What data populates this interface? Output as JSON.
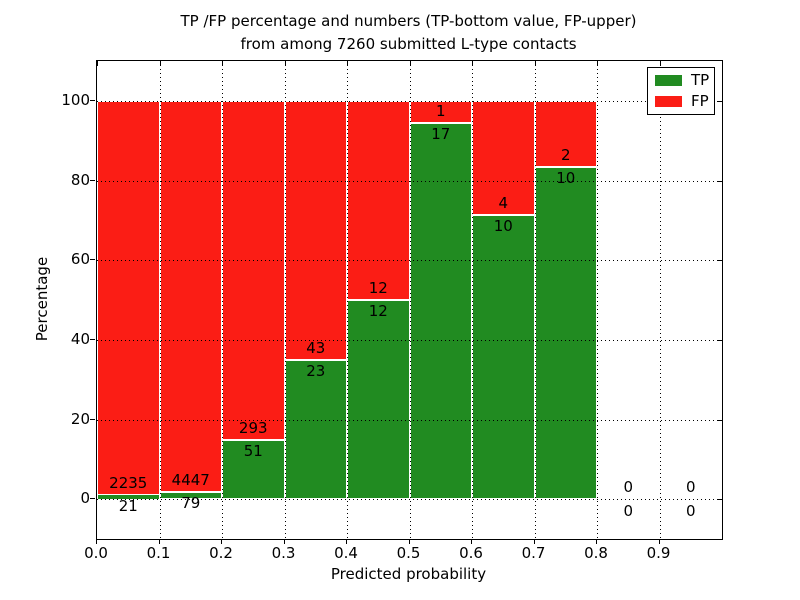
{
  "title": {
    "line1": "TP /FP percentage and numbers (TP-bottom value, FP-upper)",
    "line2": "from among 7260 submitted L-type contacts"
  },
  "axes": {
    "x_label": "Predicted probability",
    "y_label": "Percentage"
  },
  "legend": {
    "items": [
      {
        "label": "TP",
        "color": "#218b21"
      },
      {
        "label": "FP",
        "color": "#fb1d15"
      }
    ]
  },
  "chart_data": {
    "type": "bar",
    "stacked": true,
    "note": "Each bar is normalized to 100%; green TP fraction on bottom, red FP fraction on top. Count labels: TP count just below the TP/FP boundary, FP count just above it. Bins 0.8-0.9 and 0.9-1.0 have no bars, only 0/0 labels at the zero line.",
    "title": "TP /FP percentage and numbers (TP-bottom value, FP-upper) from among 7260 submitted L-type contacts",
    "xlabel": "Predicted probability",
    "ylabel": "Percentage",
    "xlim": [
      0.0,
      1.0
    ],
    "ylim": [
      -10,
      110
    ],
    "grid": "dotted black, both axes, drawn on top of bars",
    "legend_position": "upper right",
    "total_contacts": 7260,
    "bin_width": 0.1,
    "bin_start": [
      0.0,
      0.1,
      0.2,
      0.3,
      0.4,
      0.5,
      0.6,
      0.7,
      0.8,
      0.9
    ],
    "series": [
      {
        "name": "TP",
        "color": "#218b21",
        "counts": [
          21,
          79,
          51,
          23,
          12,
          17,
          10,
          10,
          0,
          0
        ]
      },
      {
        "name": "FP",
        "color": "#fb1d15",
        "counts": [
          2235,
          4447,
          293,
          43,
          12,
          1,
          4,
          2,
          0,
          0
        ]
      }
    ],
    "tp_percent_height": [
      0.93,
      1.75,
      14.83,
      34.85,
      50.0,
      94.44,
      71.43,
      83.33,
      0,
      0
    ],
    "x_tick_values": [
      0.0,
      0.1,
      0.2,
      0.3,
      0.4,
      0.5,
      0.6,
      0.7,
      0.8,
      0.9
    ],
    "x_tick_labels": [
      "0.0",
      "0.1",
      "0.2",
      "0.3",
      "0.4",
      "0.5",
      "0.6",
      "0.7",
      "0.8",
      "0.9"
    ],
    "y_tick_values": [
      0,
      20,
      40,
      60,
      80,
      100
    ],
    "y_tick_labels": [
      "0",
      "20",
      "40",
      "60",
      "80",
      "100"
    ],
    "edge_color": "#ffffff"
  }
}
